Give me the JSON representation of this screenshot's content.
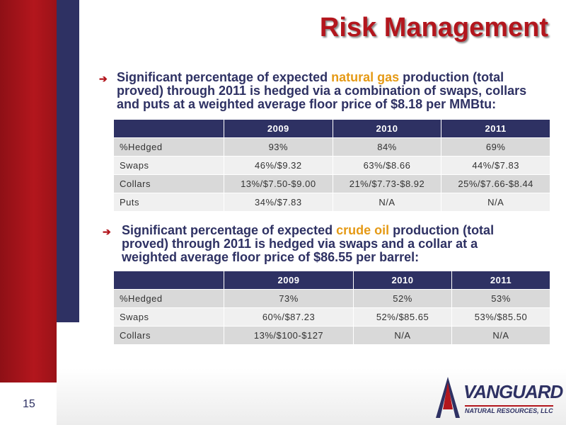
{
  "title": "Risk Management",
  "sections": [
    {
      "bullet": {
        "before": "Significant percentage of expected ",
        "highlight": "natural gas",
        "after": " production (total proved) through 2011 is hedged via a combination of swaps, collars and puts at a weighted average floor price of $8.18 per MMBtu:"
      },
      "table": {
        "header": [
          "2009",
          "2010",
          "2011"
        ],
        "rows": [
          [
            "%Hedged",
            "93%",
            "84%",
            "69%"
          ],
          [
            "Swaps",
            "46%/$9.32",
            "63%/$8.66",
            "44%/$7.83"
          ],
          [
            "Collars",
            "13%/$7.50-$9.00",
            "21%/$7.73-$8.92",
            "25%/$7.66-$8.44"
          ],
          [
            "Puts",
            "34%/$7.83",
            "N/A",
            "N/A"
          ]
        ]
      }
    },
    {
      "bullet": {
        "before": "Significant percentage of expected ",
        "highlight": "crude oil",
        "after": " production (total proved) through 2011 is hedged via swaps and a collar at a weighted average floor price of $86.55 per barrel:"
      },
      "table": {
        "header": [
          "2009",
          "2010",
          "2011"
        ],
        "rows": [
          [
            "%Hedged",
            "73%",
            "52%",
            "53%"
          ],
          [
            "Swaps",
            "60%/$87.23",
            "52%/$85.65",
            "53%/$85.50"
          ],
          [
            "Collars",
            "13%/$100-$127",
            "N/A",
            "N/A"
          ]
        ]
      }
    }
  ],
  "page_number": "15",
  "logo": {
    "name": "VANGUARD",
    "subtitle": "NATURAL RESOURCES, LLC"
  }
}
